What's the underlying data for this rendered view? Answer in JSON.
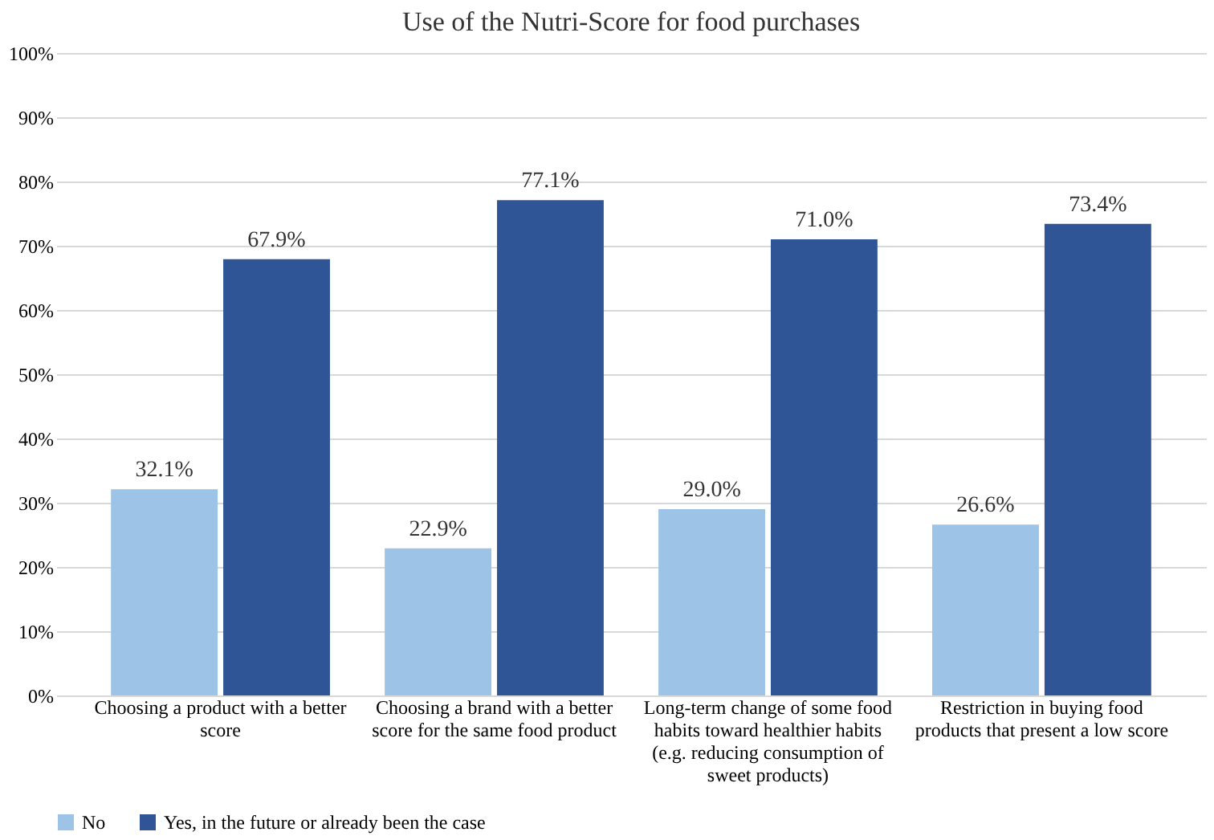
{
  "chart_data": {
    "type": "bar",
    "title": "Use of the Nutri-Score for food purchases",
    "categories": [
      "Choosing a product with a better score",
      "Choosing a brand with a better score for the same food product",
      "Long-term change of some food habits toward healthier habits (e.g. reducing consumption of sweet products)",
      "Restriction in buying food products that present a low score"
    ],
    "series": [
      {
        "name": "No",
        "color": "#9dc3e6",
        "values": [
          32.1,
          22.9,
          29.0,
          26.6
        ],
        "value_labels": [
          "32.1%",
          "22.9%",
          "29.0%",
          "26.6%"
        ]
      },
      {
        "name": "Yes, in the future or already been the case",
        "color": "#2f5597",
        "values": [
          67.9,
          77.1,
          71.0,
          73.4
        ],
        "value_labels": [
          "67.9%",
          "77.1%",
          "71.0%",
          "73.4%"
        ]
      }
    ],
    "ylim": [
      0,
      100
    ],
    "yticks": [
      {
        "value": 0,
        "label": "0%"
      },
      {
        "value": 10,
        "label": "10%"
      },
      {
        "value": 20,
        "label": "20%"
      },
      {
        "value": 30,
        "label": "30%"
      },
      {
        "value": 40,
        "label": "40%"
      },
      {
        "value": 50,
        "label": "50%"
      },
      {
        "value": 60,
        "label": "60%"
      },
      {
        "value": 70,
        "label": "70%"
      },
      {
        "value": 80,
        "label": "80%"
      },
      {
        "value": 90,
        "label": "90%"
      },
      {
        "value": 100,
        "label": "100%"
      }
    ],
    "grid": "y",
    "legend": "bottom left"
  }
}
